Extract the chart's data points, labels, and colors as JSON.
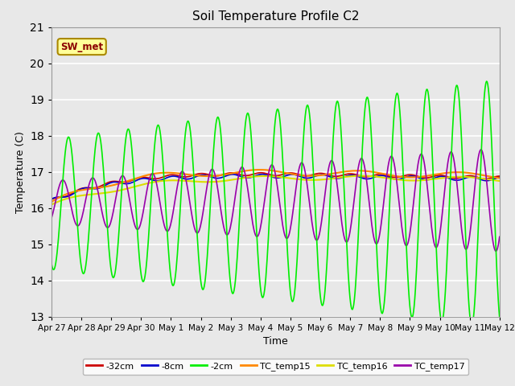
{
  "title": "Soil Temperature Profile C2",
  "xlabel": "Time",
  "ylabel": "Temperature (C)",
  "ylim": [
    13.0,
    21.0
  ],
  "yticks": [
    13.0,
    14.0,
    15.0,
    16.0,
    17.0,
    18.0,
    19.0,
    20.0,
    21.0
  ],
  "xlabels": [
    "Apr 27",
    "Apr 28",
    "Apr 29",
    "Apr 30",
    "May 1",
    "May 2",
    "May 3",
    "May 4",
    "May 5",
    "May 6",
    "May 7",
    "May 8",
    "May 9",
    "May 10",
    "May 11",
    "May 12"
  ],
  "series_colors": {
    "-32cm": "#cc0000",
    "-8cm": "#0000cc",
    "-2cm": "#00ee00",
    "TC_temp15": "#ff8800",
    "TC_temp16": "#dddd00",
    "TC_temp17": "#9900aa"
  },
  "lw": 1.2,
  "annotation": "SW_met",
  "annotation_bg": "#ffff99",
  "annotation_border": "#aa8800",
  "plot_bg": "#e8e8e8",
  "grid_color": "#ffffff"
}
